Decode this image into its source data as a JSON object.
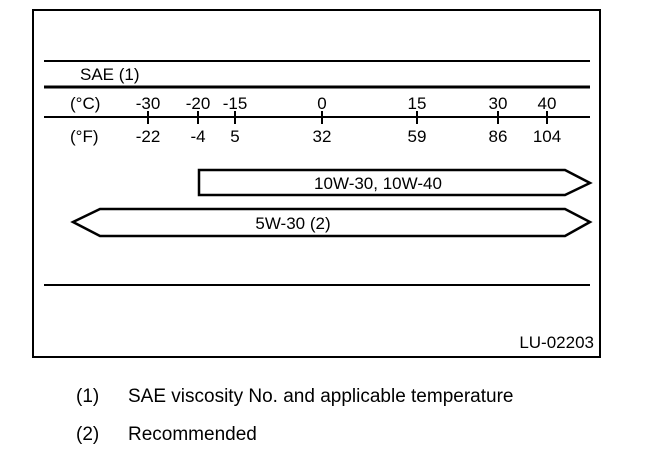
{
  "diagram": {
    "sae_label": "SAE (1)",
    "celsius_label": "(°C)",
    "fahrenheit_label": "(°F)",
    "temperatures": [
      {
        "c": "-30",
        "f": "-22"
      },
      {
        "c": "-20",
        "f": "-4"
      },
      {
        "c": "-15",
        "f": "5"
      },
      {
        "c": "0",
        "f": "32"
      },
      {
        "c": "15",
        "f": "59"
      },
      {
        "c": "30",
        "f": "86"
      },
      {
        "c": "40",
        "f": "104"
      }
    ],
    "bands": [
      {
        "label": "10W-30, 10W-40",
        "from_c": "-20",
        "to_c": "above 40"
      },
      {
        "label": "5W-30 (2)",
        "from_c": "below -30",
        "to_c": "above 40"
      }
    ],
    "figure_id": "LU-02203"
  },
  "legend": [
    {
      "num": "(1)",
      "text": "SAE viscosity No. and applicable temperature"
    },
    {
      "num": "(2)",
      "text": "Recommended"
    }
  ]
}
